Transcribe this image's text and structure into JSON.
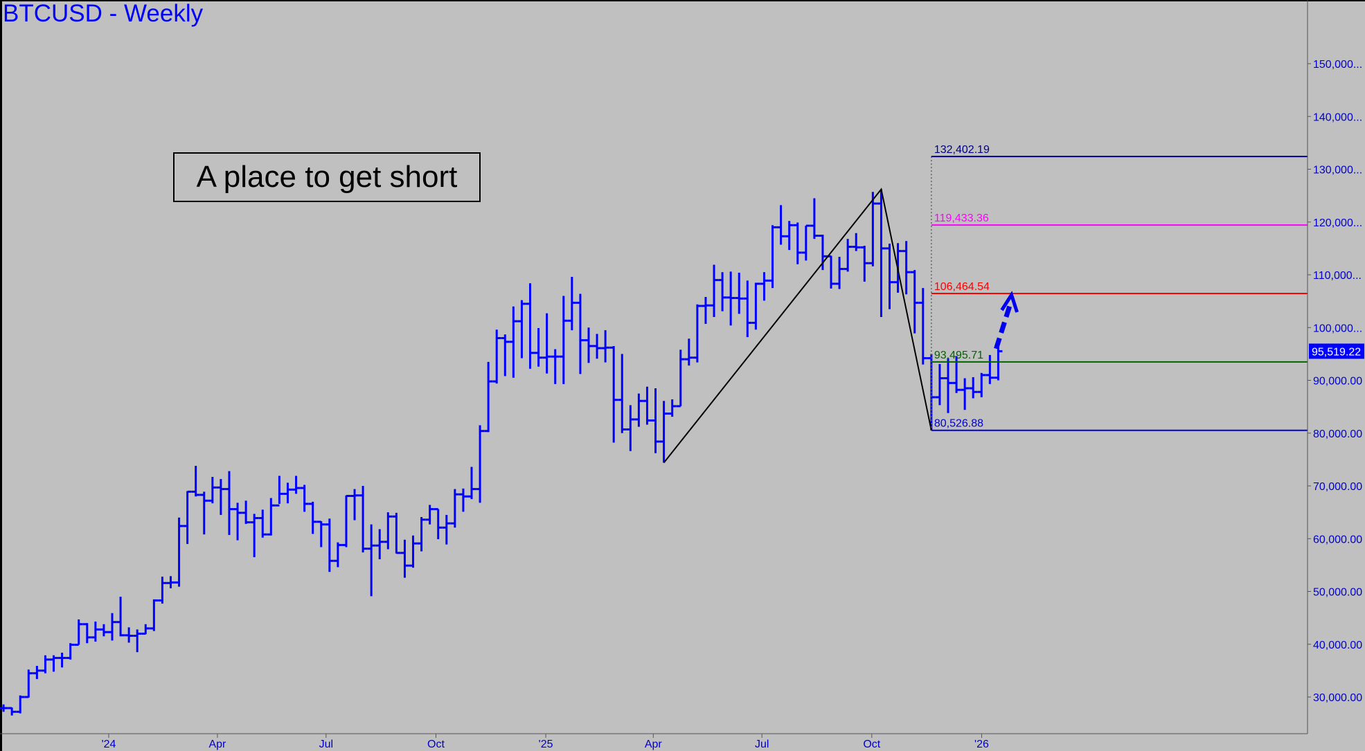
{
  "title": "BTCUSD - Weekly",
  "annotation": "A place to get short",
  "colors": {
    "background": "#c0c0c0",
    "bars": "#0000ff",
    "axis_text": "#0000cc",
    "pattern_line": "#000000"
  },
  "chart_data": {
    "type": "ohlc",
    "title": "BTCUSD - Weekly",
    "ylim": [
      24000,
      160000
    ],
    "y_ticks": [
      30000,
      40000,
      50000,
      60000,
      70000,
      80000,
      90000,
      100000,
      110000,
      120000,
      130000,
      140000,
      150000
    ],
    "y_tick_labels": [
      "30,000.00",
      "40,000.00",
      "50,000.00",
      "60,000.00",
      "70,000.00",
      "80,000.00",
      "90,000.00",
      "100,000...",
      "110,000...",
      "120,000...",
      "130,000...",
      "140,000...",
      "150,000..."
    ],
    "x_ticks": [
      {
        "date": "2024-01-01",
        "label": "'24"
      },
      {
        "date": "2024-04-01",
        "label": "Apr"
      },
      {
        "date": "2024-07-01",
        "label": "Jul"
      },
      {
        "date": "2024-10-01",
        "label": "Oct"
      },
      {
        "date": "2025-01-01",
        "label": "'25"
      },
      {
        "date": "2025-04-01",
        "label": "Apr"
      },
      {
        "date": "2025-07-01",
        "label": "Jul"
      },
      {
        "date": "2025-10-01",
        "label": "Oct"
      },
      {
        "date": "2026-01-01",
        "label": "'26"
      }
    ],
    "last_price": {
      "value": 95519.22,
      "label": "95,519.22"
    },
    "levels": [
      {
        "value": 132402.19,
        "label": "132,402.19",
        "color": "#000080"
      },
      {
        "value": 119433.36,
        "label": "119,433.36",
        "color": "#ff00ff"
      },
      {
        "value": 106464.54,
        "label": "106,464.54",
        "color": "#ff0000"
      },
      {
        "value": 93495.71,
        "label": "93,495.71",
        "color": "#006400"
      },
      {
        "value": 80526.88,
        "label": "80,526.88",
        "color": "#0000cc"
      }
    ],
    "pattern": [
      {
        "date": "2025-04-07",
        "price": 74400
      },
      {
        "date": "2025-10-06",
        "price": 126200
      },
      {
        "date": "2025-11-17",
        "price": 80526.88
      }
    ],
    "projection_arrow": {
      "from": {
        "date": "2026-01-12",
        "price": 96000
      },
      "to": {
        "date": "2026-01-26",
        "price": 106200
      }
    },
    "bar_fields": [
      "week",
      "open",
      "high",
      "low",
      "close"
    ],
    "bars": [
      [
        "2023-10-02",
        27900,
        28600,
        27200,
        27900
      ],
      [
        "2023-10-09",
        27900,
        28000,
        26500,
        27200
      ],
      [
        "2023-10-16",
        27200,
        30300,
        26900,
        30000
      ],
      [
        "2023-10-23",
        30000,
        35200,
        29900,
        34500
      ],
      [
        "2023-10-30",
        34500,
        35900,
        33400,
        35000
      ],
      [
        "2023-11-06",
        35000,
        37900,
        34500,
        37100
      ],
      [
        "2023-11-13",
        37100,
        37900,
        34800,
        37400
      ],
      [
        "2023-11-20",
        37400,
        38400,
        35600,
        37400
      ],
      [
        "2023-11-27",
        37400,
        40200,
        37100,
        39900
      ],
      [
        "2023-12-04",
        39900,
        44700,
        39900,
        43800
      ],
      [
        "2023-12-11",
        43800,
        44000,
        40200,
        41300
      ],
      [
        "2023-12-18",
        41300,
        44300,
        40500,
        42800
      ],
      [
        "2023-12-25",
        42800,
        43800,
        41500,
        42300
      ],
      [
        "2024-01-01",
        42300,
        45900,
        40700,
        44200
      ],
      [
        "2024-01-08",
        44200,
        49000,
        41500,
        41700
      ],
      [
        "2024-01-15",
        41700,
        43200,
        40300,
        41600
      ],
      [
        "2024-01-22",
        41600,
        42800,
        38500,
        42000
      ],
      [
        "2024-01-29",
        42000,
        43800,
        41900,
        43000
      ],
      [
        "2024-02-05",
        43000,
        48500,
        42500,
        48300
      ],
      [
        "2024-02-12",
        48300,
        52800,
        47700,
        51600
      ],
      [
        "2024-02-19",
        51600,
        52900,
        50600,
        51700
      ],
      [
        "2024-02-26",
        51700,
        64000,
        50900,
        62400
      ],
      [
        "2024-03-04",
        62400,
        69000,
        59000,
        68900
      ],
      [
        "2024-03-11",
        68900,
        73800,
        68000,
        68300
      ],
      [
        "2024-03-18",
        68300,
        68900,
        60800,
        67200
      ],
      [
        "2024-03-25",
        67200,
        71700,
        66700,
        69700
      ],
      [
        "2024-04-01",
        69700,
        71300,
        64500,
        69400
      ],
      [
        "2024-04-08",
        69400,
        72800,
        60700,
        65600
      ],
      [
        "2024-04-15",
        65600,
        66800,
        59700,
        64900
      ],
      [
        "2024-04-22",
        64900,
        67200,
        62800,
        63100
      ],
      [
        "2024-04-29",
        63100,
        64700,
        56500,
        63900
      ],
      [
        "2024-05-06",
        63900,
        65500,
        60200,
        60800
      ],
      [
        "2024-05-13",
        60800,
        67700,
        60600,
        66300
      ],
      [
        "2024-05-20",
        66300,
        71900,
        66600,
        68500
      ],
      [
        "2024-05-27",
        68500,
        70600,
        66700,
        69300
      ],
      [
        "2024-06-03",
        69300,
        71900,
        68500,
        69600
      ],
      [
        "2024-06-10",
        69600,
        70200,
        65100,
        66600
      ],
      [
        "2024-06-17",
        66600,
        67000,
        60900,
        63200
      ],
      [
        "2024-06-24",
        63200,
        63300,
        58400,
        62700
      ],
      [
        "2024-07-01",
        62700,
        63800,
        53700,
        55800
      ],
      [
        "2024-07-08",
        55800,
        59300,
        54600,
        58800
      ],
      [
        "2024-07-15",
        58800,
        68200,
        58400,
        68100
      ],
      [
        "2024-07-22",
        68100,
        69400,
        63500,
        68200
      ],
      [
        "2024-07-29",
        68200,
        70000,
        57400,
        58100
      ],
      [
        "2024-08-05",
        58100,
        62700,
        49100,
        58700
      ],
      [
        "2024-08-12",
        58700,
        61800,
        56100,
        59400
      ],
      [
        "2024-08-19",
        59400,
        65000,
        58000,
        64200
      ],
      [
        "2024-08-26",
        64200,
        64900,
        57200,
        57300
      ],
      [
        "2024-09-02",
        57300,
        59800,
        52600,
        54900
      ],
      [
        "2024-09-09",
        54900,
        60600,
        54500,
        59100
      ],
      [
        "2024-09-16",
        59100,
        64100,
        57600,
        63600
      ],
      [
        "2024-09-23",
        63600,
        66400,
        62700,
        65600
      ],
      [
        "2024-09-30",
        65600,
        65600,
        59900,
        62100
      ],
      [
        "2024-10-07",
        62100,
        64500,
        58900,
        62900
      ],
      [
        "2024-10-14",
        62900,
        69400,
        62100,
        68400
      ],
      [
        "2024-10-21",
        68400,
        69500,
        65100,
        68000
      ],
      [
        "2024-10-28",
        68000,
        73600,
        67500,
        69400
      ],
      [
        "2024-11-04",
        69400,
        81500,
        66800,
        80400
      ],
      [
        "2024-11-11",
        80400,
        93500,
        80200,
        89800
      ],
      [
        "2024-11-18",
        89800,
        99600,
        89400,
        98000
      ],
      [
        "2024-11-25",
        98000,
        98700,
        90800,
        97300
      ],
      [
        "2024-12-02",
        97300,
        104000,
        90500,
        101200
      ],
      [
        "2024-12-09",
        101200,
        105200,
        94200,
        104500
      ],
      [
        "2024-12-16",
        104500,
        108400,
        92200,
        95200
      ],
      [
        "2024-12-23",
        95200,
        99900,
        92600,
        94300
      ],
      [
        "2024-12-30",
        94300,
        102700,
        91300,
        94500
      ],
      [
        "2025-01-06",
        94500,
        95900,
        89300,
        94500
      ],
      [
        "2025-01-13",
        94500,
        106000,
        89300,
        101300
      ],
      [
        "2025-01-20",
        101300,
        109600,
        99500,
        104700
      ],
      [
        "2025-01-27",
        104700,
        106400,
        91200,
        97600
      ],
      [
        "2025-02-03",
        97600,
        100000,
        93300,
        96500
      ],
      [
        "2025-02-10",
        96500,
        98800,
        94100,
        96100
      ],
      [
        "2025-02-17",
        96100,
        99500,
        93400,
        96200
      ],
      [
        "2025-02-24",
        96200,
        96500,
        78200,
        86300
      ],
      [
        "2025-03-03",
        86300,
        95000,
        80000,
        80700
      ],
      [
        "2025-03-10",
        80700,
        85300,
        76600,
        82600
      ],
      [
        "2025-03-17",
        82600,
        87500,
        81200,
        86100
      ],
      [
        "2025-03-24",
        86100,
        88800,
        81600,
        82400
      ],
      [
        "2025-03-31",
        82400,
        88500,
        76200,
        78400
      ],
      [
        "2025-04-07",
        78400,
        86100,
        74400,
        83700
      ],
      [
        "2025-04-14",
        83700,
        86400,
        83100,
        85100
      ],
      [
        "2025-04-21",
        85100,
        95800,
        85100,
        94000
      ],
      [
        "2025-04-28",
        94000,
        97900,
        92800,
        94300
      ],
      [
        "2025-05-05",
        94300,
        104400,
        93400,
        104100
      ],
      [
        "2025-05-12",
        104100,
        105800,
        100700,
        104200
      ],
      [
        "2025-05-19",
        104200,
        111900,
        102000,
        109000
      ],
      [
        "2025-05-26",
        109000,
        110500,
        103100,
        105700
      ],
      [
        "2025-06-02",
        105700,
        110600,
        100400,
        105600
      ],
      [
        "2025-06-09",
        105600,
        110400,
        102600,
        105500
      ],
      [
        "2025-06-16",
        105500,
        108900,
        98200,
        100900
      ],
      [
        "2025-06-23",
        100900,
        108500,
        99600,
        108300
      ],
      [
        "2025-06-30",
        108300,
        110500,
        105100,
        108900
      ],
      [
        "2025-07-07",
        108900,
        119400,
        107500,
        119000
      ],
      [
        "2025-07-14",
        119000,
        123200,
        115700,
        117300
      ],
      [
        "2025-07-21",
        117300,
        120200,
        114700,
        119400
      ],
      [
        "2025-07-28",
        119400,
        119900,
        112000,
        114200
      ],
      [
        "2025-08-04",
        114200,
        119300,
        112700,
        119300
      ],
      [
        "2025-08-11",
        119300,
        124500,
        116800,
        117400
      ],
      [
        "2025-08-18",
        117400,
        117600,
        110900,
        113500
      ],
      [
        "2025-08-25",
        113500,
        113600,
        107400,
        108300
      ],
      [
        "2025-09-01",
        108300,
        113400,
        107300,
        111100
      ],
      [
        "2025-09-08",
        111100,
        116800,
        110600,
        115300
      ],
      [
        "2025-09-15",
        115300,
        117900,
        114500,
        115200
      ],
      [
        "2025-09-22",
        115200,
        115500,
        108700,
        112200
      ],
      [
        "2025-09-29",
        112200,
        125700,
        111600,
        123500
      ],
      [
        "2025-10-06",
        123500,
        126200,
        102000,
        115000
      ],
      [
        "2025-10-13",
        115000,
        115900,
        103500,
        108600
      ],
      [
        "2025-10-20",
        108600,
        116000,
        106600,
        114500
      ],
      [
        "2025-10-27",
        114500,
        116400,
        106300,
        110500
      ],
      [
        "2025-11-03",
        110500,
        110900,
        98900,
        104700
      ],
      [
        "2025-11-10",
        104700,
        107500,
        93000,
        94200
      ],
      [
        "2025-11-17",
        94200,
        95000,
        80500,
        86800
      ],
      [
        "2025-11-24",
        86800,
        93100,
        85300,
        90400
      ],
      [
        "2025-12-01",
        90400,
        94200,
        83800,
        89500
      ],
      [
        "2025-12-08",
        89500,
        94600,
        87600,
        88200
      ],
      [
        "2025-12-15",
        88200,
        90400,
        84400,
        88500
      ],
      [
        "2025-12-22",
        88500,
        90600,
        86600,
        87800
      ],
      [
        "2025-12-29",
        87800,
        91400,
        86800,
        91000
      ],
      [
        "2026-01-05",
        91000,
        94800,
        89300,
        90500
      ],
      [
        "2026-01-12",
        90500,
        97900,
        90000,
        95519.22
      ]
    ]
  }
}
